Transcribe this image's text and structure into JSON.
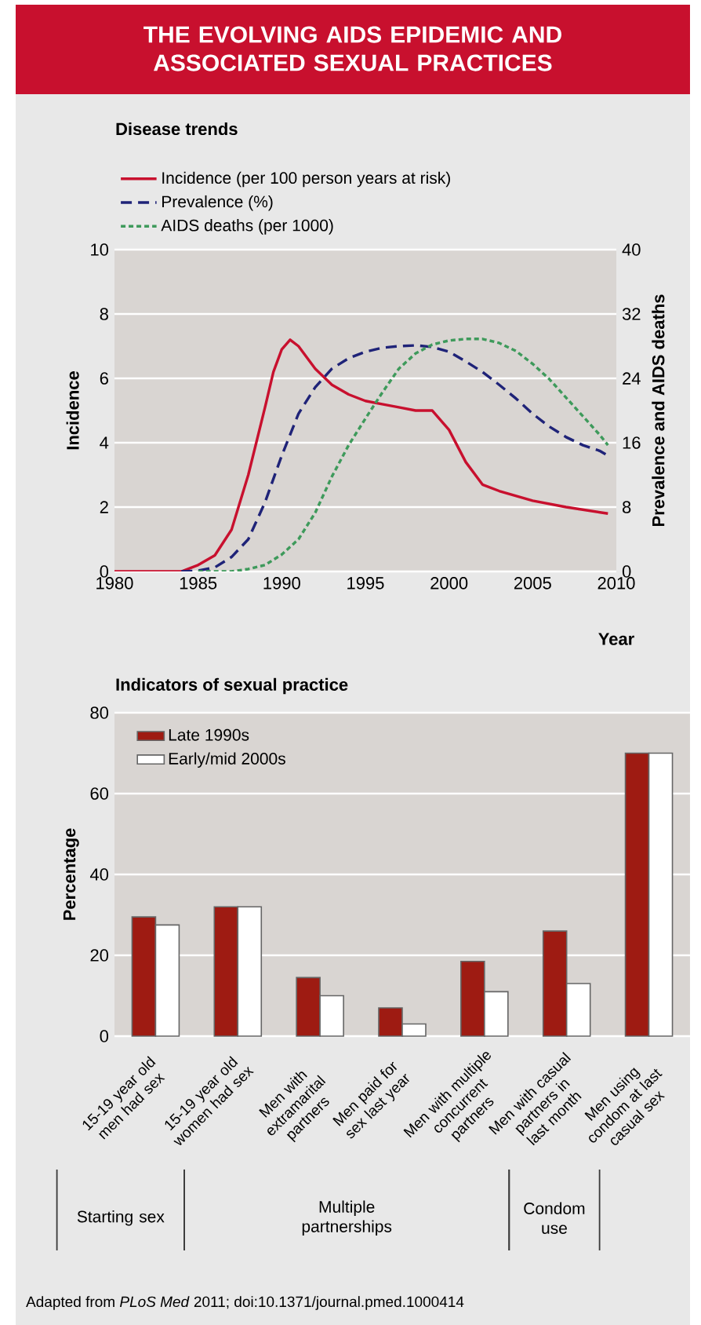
{
  "chart_data": [
    {
      "type": "line",
      "title": "THE EVOLVING AIDS EPIDEMIC AND ASSOCIATED SEXUAL PRACTICES",
      "subtitle": "Disease trends",
      "xlabel": "Year",
      "ylabel": "Incidence",
      "y2label": "Prevalence and AIDS deaths",
      "xlim": [
        1980,
        2010
      ],
      "xticks": [
        1980,
        1985,
        1990,
        1995,
        2000,
        2005,
        2010
      ],
      "ylim": [
        0,
        10
      ],
      "yticks": [
        0,
        2,
        4,
        6,
        8,
        10
      ],
      "y2lim": [
        0,
        40
      ],
      "y2ticks": [
        0,
        8,
        16,
        24,
        32,
        40
      ],
      "grid": "y",
      "legend": "top",
      "series": [
        {
          "name": "Incidence (per 100 person years at risk)",
          "color": "#c8102e",
          "line_style": "solid",
          "x": [
            1980,
            1984,
            1985,
            1986,
            1987,
            1988,
            1989,
            1989.5,
            1990,
            1990.5,
            1991,
            1992,
            1993,
            1994,
            1995,
            1996,
            1997,
            1998,
            1999,
            2000,
            2001,
            2002,
            2003,
            2005,
            2007,
            2009.5
          ],
          "values": [
            0,
            0,
            0.2,
            0.5,
            1.3,
            3.0,
            5.1,
            6.2,
            6.9,
            7.2,
            7.0,
            6.3,
            5.8,
            5.5,
            5.3,
            5.2,
            5.1,
            5.0,
            5.0,
            4.4,
            3.4,
            2.7,
            2.5,
            2.2,
            2.0,
            1.8
          ]
        },
        {
          "name": "Prevalence (%)",
          "color": "#1f2378",
          "line_style": "dashed",
          "axis": "y2",
          "x": [
            1984,
            1985,
            1986,
            1987,
            1988,
            1989,
            1990,
            1991,
            1992,
            1993,
            1994,
            1995,
            1996,
            1997,
            1998,
            1999,
            2000,
            2001,
            2002,
            2003,
            2004,
            2005,
            2006,
            2007,
            2008,
            2009,
            2009.5
          ],
          "values": [
            0,
            0.1,
            0.5,
            1.8,
            4,
            8.6,
            14.4,
            19.6,
            22.9,
            25.2,
            26.5,
            27.3,
            27.8,
            28,
            28.1,
            27.9,
            27.3,
            26.1,
            24.8,
            23.2,
            21.5,
            19.6,
            18,
            16.7,
            15.7,
            15,
            14.4
          ]
        },
        {
          "name": "AIDS deaths (per 1000)",
          "color": "#3e9a5b",
          "line_style": "dotted",
          "axis": "y2",
          "x": [
            1985,
            1987,
            1988,
            1989,
            1990,
            1991,
            1992,
            1993,
            1994,
            1995,
            1996,
            1997,
            1998,
            1999,
            2000,
            2001,
            2002,
            2003,
            2004,
            2005,
            2006,
            2007,
            2008,
            2009,
            2009.5
          ],
          "values": [
            0,
            0,
            0.3,
            0.8,
            2.1,
            4,
            7.3,
            11.8,
            15.7,
            19,
            22.2,
            25.2,
            27.1,
            28.2,
            28.7,
            28.9,
            28.9,
            28.4,
            27.4,
            25.8,
            23.9,
            21.6,
            19.3,
            17,
            15.7
          ]
        }
      ]
    },
    {
      "type": "bar",
      "title": "Indicators of sexual practice",
      "ylabel": "Percentage",
      "ylim": [
        0,
        80
      ],
      "yticks": [
        0,
        20,
        40,
        60,
        80
      ],
      "grid": "y",
      "legend": "top left",
      "categories": [
        "15-19 year old men had sex",
        "15-19 year old women had sex",
        "Men with extramarital partners",
        "Men paid for sex last year",
        "Men with multiple concurrent partners",
        "Men with casual partners in last month",
        "Men using condom at last casual sex"
      ],
      "series": [
        {
          "name": "Late 1990s",
          "color": "#9e1b12",
          "values": [
            29.5,
            32,
            14.5,
            7,
            18.5,
            26,
            70
          ]
        },
        {
          "name": "Early/mid 2000s",
          "color": "#ffffff",
          "values": [
            27.5,
            32,
            10,
            3,
            11,
            13,
            70
          ]
        }
      ],
      "annotations": [
        "Starting sex",
        "Multiple partnerships",
        "Condom use",
        "Adapted from *PLoS Med* 2011; doi:10.1371/journal.pmed.1000414"
      ]
    }
  ]
}
